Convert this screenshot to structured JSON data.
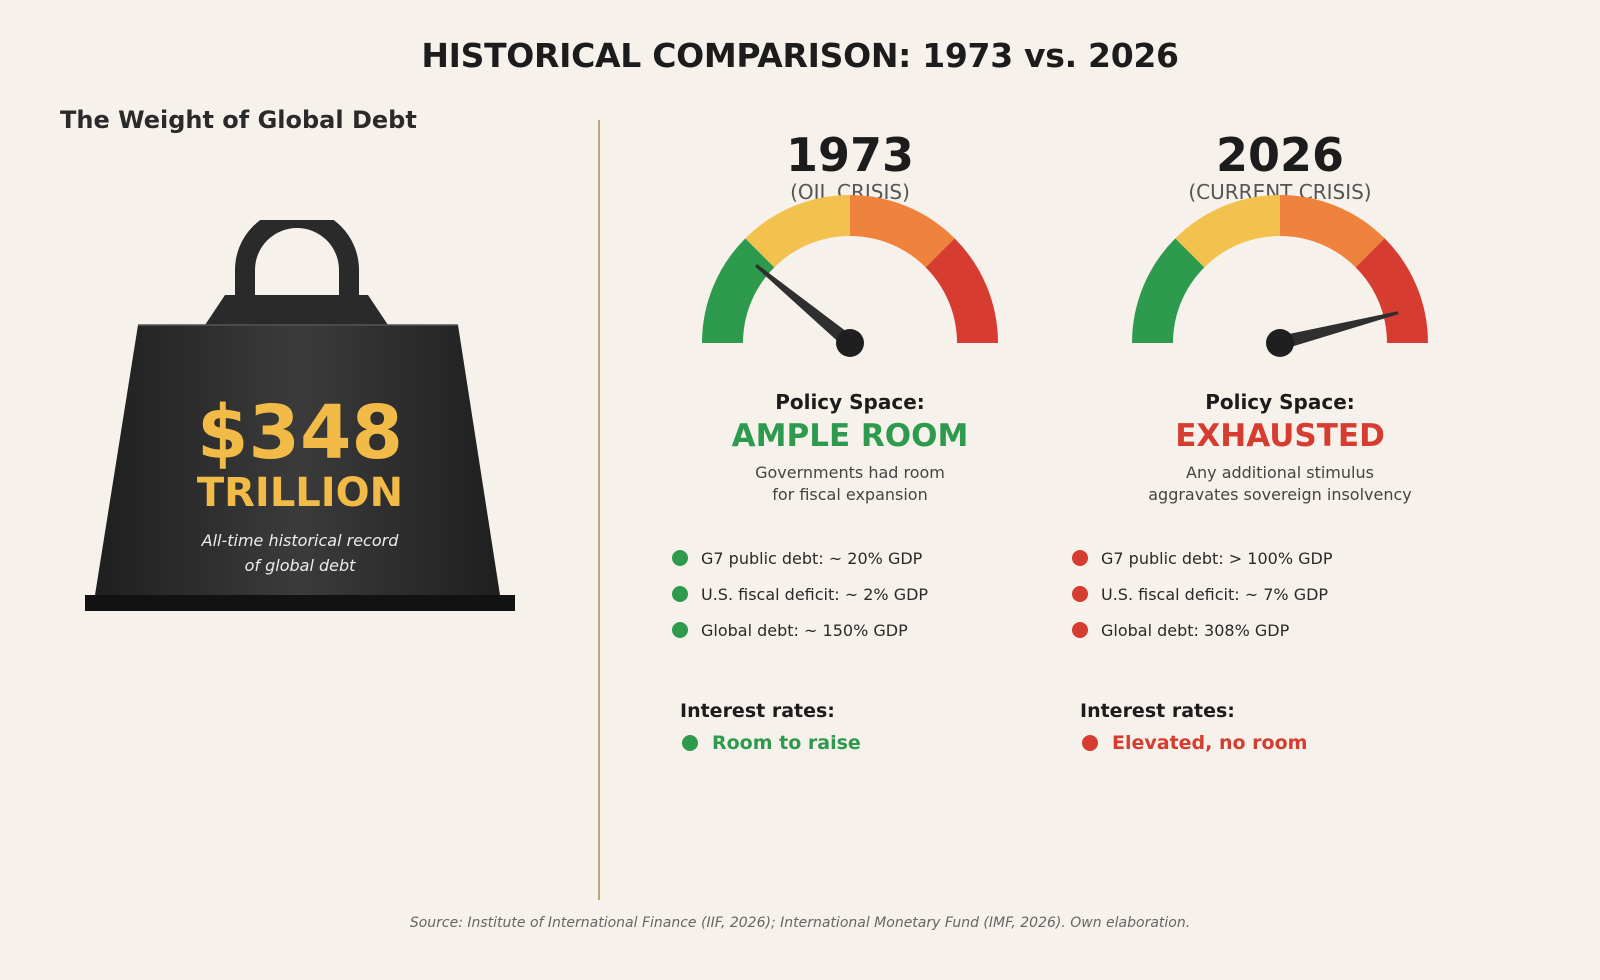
{
  "title": "HISTORICAL COMPARISON: 1973 vs. 2026",
  "left": {
    "heading": "The Weight of Global Debt",
    "amount": "$348",
    "unit": "TRILLION",
    "note_line1": "All-time historical record",
    "note_line2": "of global debt",
    "accent_color": "#f2bb48"
  },
  "colors": {
    "green": "#2e9a4e",
    "yellow": "#f2c14e",
    "orange": "#ef823c",
    "red": "#d63c2f"
  },
  "panels": [
    {
      "year": "1973",
      "subtitle": "(OIL CRISIS)",
      "gauge_level": 0.22,
      "policy_label": "Policy Space:",
      "status": "AMPLE ROOM",
      "status_color": "#2e9a4e",
      "desc_line1": "Governments had room",
      "desc_line2": "for fiscal expansion",
      "bullets": [
        "G7 public debt: ~ 20% GDP",
        "U.S. fiscal deficit: ~ 2% GDP",
        "Global debt: ~ 150% GDP"
      ],
      "bullet_color": "#2e9a4e",
      "rates_label": "Interest rates:",
      "rates_value": "Room to raise",
      "rates_color": "#2e9a4e"
    },
    {
      "year": "2026",
      "subtitle": "(CURRENT CRISIS)",
      "gauge_level": 0.92,
      "policy_label": "Policy Space:",
      "status": "EXHAUSTED",
      "status_color": "#d63c2f",
      "desc_line1": "Any additional stimulus",
      "desc_line2": "aggravates sovereign insolvency",
      "bullets": [
        "G7 public debt: > 100% GDP",
        "U.S. fiscal deficit: ~ 7% GDP",
        "Global debt: 308% GDP"
      ],
      "bullet_color": "#d63c2f",
      "rates_label": "Interest rates:",
      "rates_value": "Elevated, no room",
      "rates_color": "#d63c2f"
    }
  ],
  "source": "Source: Institute of International Finance (IIF, 2026); International Monetary Fund (IMF, 2026). Own elaboration."
}
